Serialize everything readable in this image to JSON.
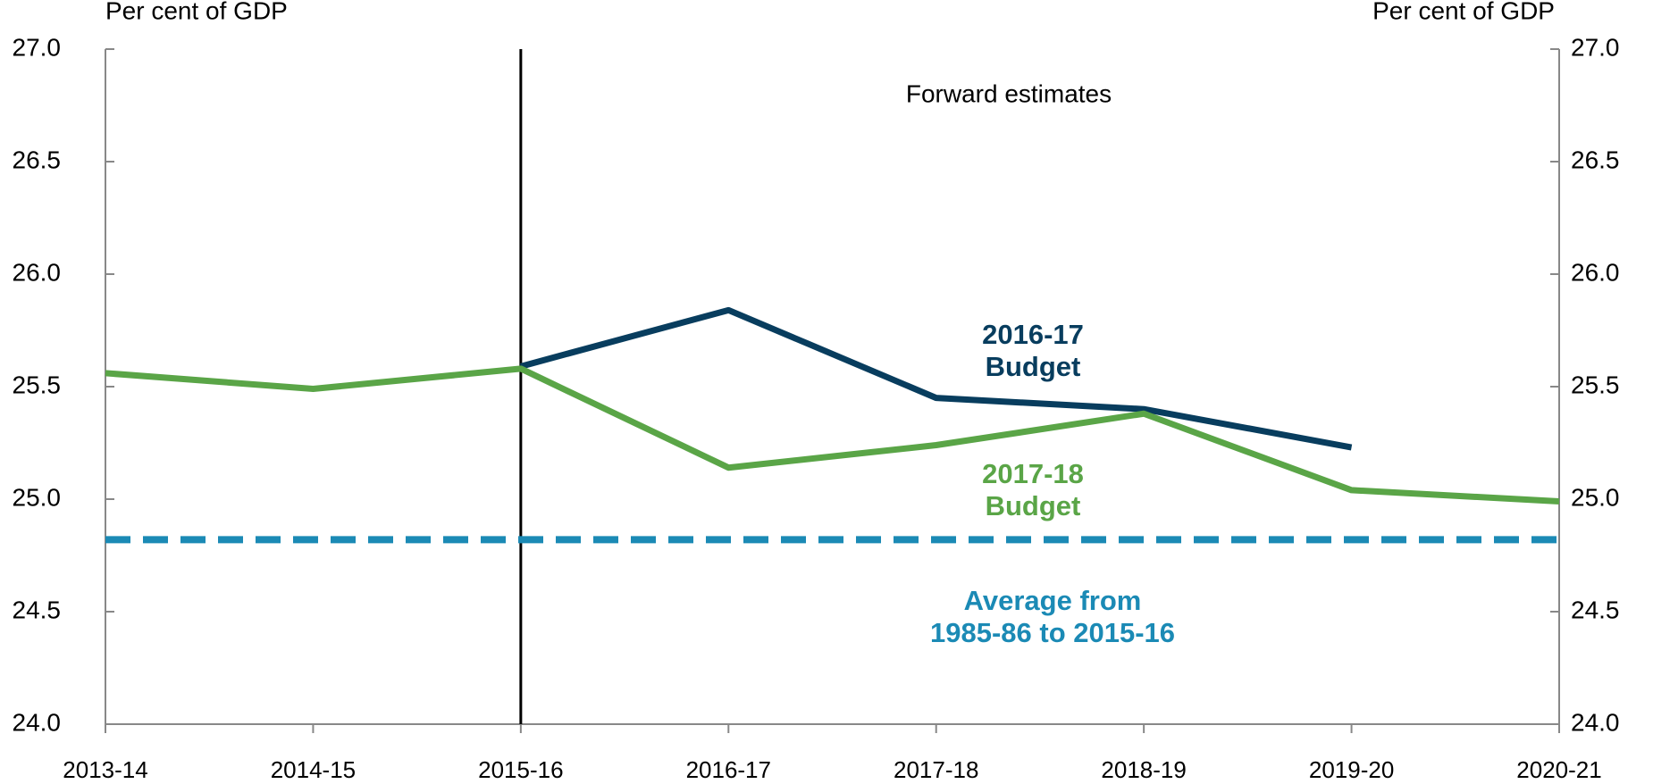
{
  "chart_data": {
    "type": "line",
    "left_axis_label": "Per cent of GDP",
    "right_axis_label": "Per cent of GDP",
    "annotation": "Forward estimates",
    "divider_at": "2015-16",
    "categories": [
      "2013-14",
      "2014-15",
      "2015-16",
      "2016-17",
      "2017-18",
      "2018-19",
      "2019-20",
      "2020-21"
    ],
    "series": [
      {
        "name": "2016-17\nBudget",
        "color": "#083d5e",
        "dash": false,
        "values": [
          null,
          null,
          25.59,
          25.84,
          25.45,
          25.4,
          25.23,
          null
        ]
      },
      {
        "name": "2017-18\nBudget",
        "color": "#5aa547",
        "dash": false,
        "values": [
          25.56,
          25.49,
          25.58,
          25.14,
          25.24,
          25.38,
          25.04,
          24.99
        ]
      },
      {
        "name": "Average from\n1985-86 to 2015-16",
        "color": "#1b8ab5",
        "dash": true,
        "values": [
          24.82,
          24.82,
          24.82,
          24.82,
          24.82,
          24.82,
          24.82,
          24.82
        ]
      }
    ],
    "ylim": [
      24.0,
      27.0
    ],
    "yticks": [
      {
        "value": 24.0,
        "label": "24.0"
      },
      24.5,
      {
        "value": 25.0,
        "label": "25.0"
      },
      25.5,
      {
        "value": 26.0,
        "label": "26.0"
      },
      26.5,
      {
        "value": 27.0,
        "label": "27.0"
      }
    ],
    "y2lim": [
      24.0,
      27.0
    ],
    "y2ticks": [
      {
        "value": 24.0,
        "label": "24.0"
      },
      24.5,
      {
        "value": 25.0,
        "label": "25.0"
      },
      25.5,
      {
        "value": 26.0,
        "label": "26.0"
      },
      26.5,
      {
        "value": 27.0,
        "label": "27.0"
      }
    ],
    "grid": false
  }
}
